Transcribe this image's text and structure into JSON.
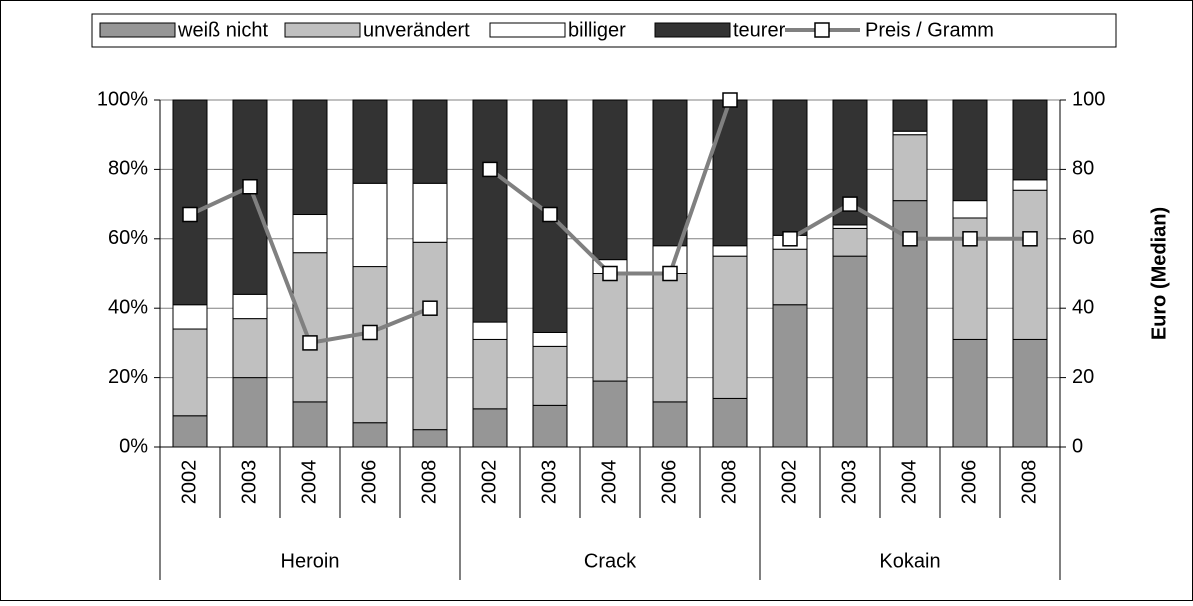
{
  "chart_data": {
    "type": "stacked_bar_line",
    "categories": [
      "2002",
      "2003",
      "2004",
      "2006",
      "2008",
      "2002",
      "2003",
      "2004",
      "2006",
      "2008",
      "2002",
      "2003",
      "2004",
      "2006",
      "2008"
    ],
    "groups": [
      "Heroin",
      "Crack",
      "Kokain"
    ],
    "series": [
      {
        "name": "weiß nicht",
        "color": "#969696",
        "values": [
          9,
          20,
          13,
          7,
          5,
          11,
          12,
          19,
          13,
          14,
          41,
          55,
          71,
          31,
          31
        ]
      },
      {
        "name": "unverändert",
        "color": "#c0c0c0",
        "values": [
          25,
          17,
          43,
          45,
          54,
          20,
          17,
          31,
          37,
          41,
          16,
          8,
          19,
          35,
          43
        ]
      },
      {
        "name": "billiger",
        "color": "#ffffff",
        "values": [
          7,
          7,
          11,
          24,
          17,
          5,
          4,
          4,
          8,
          3,
          4,
          1,
          1,
          5,
          3
        ]
      },
      {
        "name": "teurer",
        "color": "#333333",
        "values": [
          59,
          56,
          33,
          24,
          24,
          64,
          67,
          46,
          42,
          42,
          39,
          36,
          9,
          29,
          23
        ]
      },
      {
        "name": "Preis / Gramm",
        "color": "#808080",
        "axis": "y2",
        "values": [
          67,
          75,
          30,
          33,
          40,
          80,
          67,
          50,
          50,
          100,
          60,
          70,
          60,
          60,
          60
        ]
      }
    ],
    "ylim": [
      0,
      100
    ],
    "yticks": [
      {
        "value": 0,
        "label": "0%"
      },
      {
        "value": 20,
        "label": "20%"
      },
      {
        "value": 40,
        "label": "40%"
      },
      {
        "value": 60,
        "label": "60%"
      },
      {
        "value": 80,
        "label": "80%"
      },
      {
        "value": 100,
        "label": "100%"
      }
    ],
    "y2lim": [
      0,
      100
    ],
    "y2ticks": [
      0,
      20,
      40,
      60,
      80,
      100
    ],
    "y2label": "Euro (Median)",
    "grid": true,
    "legend": "top"
  }
}
